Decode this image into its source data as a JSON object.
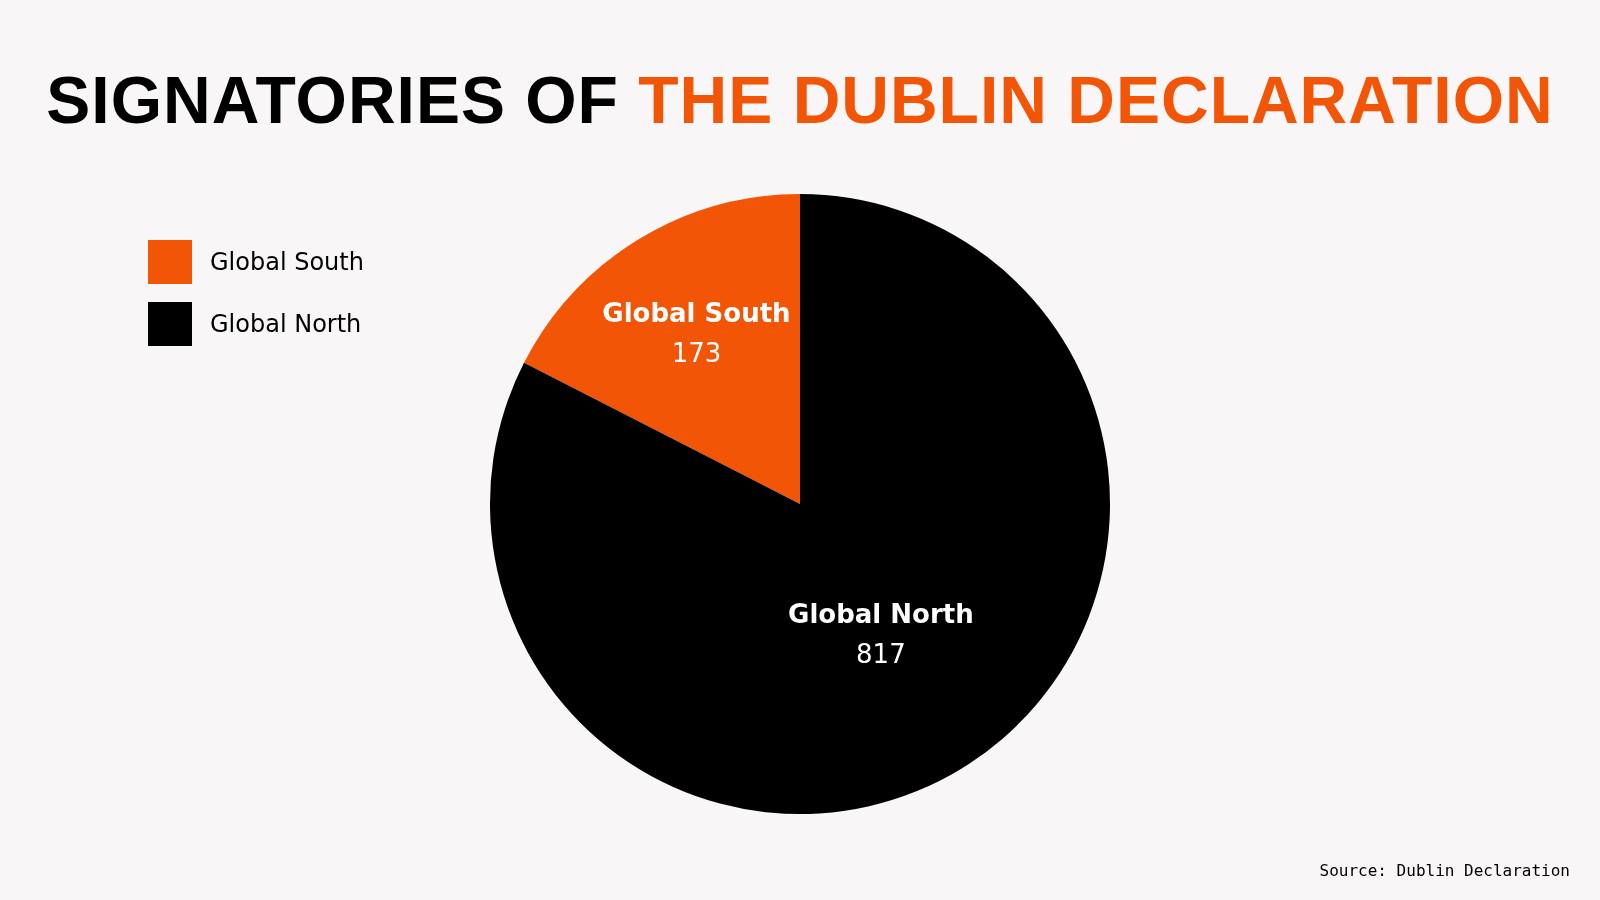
{
  "chart_data": {
    "type": "pie",
    "title": "SIGNATORIES OF THE DUBLIN DECLARATION",
    "categories": [
      "Global South",
      "Global North"
    ],
    "values": [
      173,
      817
    ],
    "colors": [
      "#f25506",
      "#000000"
    ],
    "legend": "top left",
    "data_labels": true,
    "annotations": [
      "Source: Dublin Declaration"
    ]
  }
}
